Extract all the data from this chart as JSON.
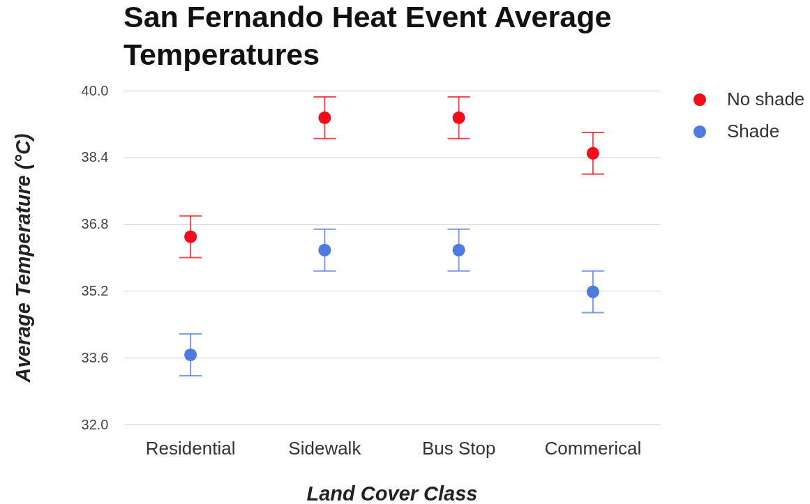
{
  "chart_data": {
    "type": "scatter",
    "title": "San Fernando Heat Event Average Temperatures",
    "xlabel": "Land Cover Class",
    "ylabel": "Average Temperature (°C)",
    "categories": [
      "Residential",
      "Sidewalk",
      "Bus Stop",
      "Commerical"
    ],
    "series": [
      {
        "name": "No shade",
        "color": "#f20d1c",
        "values": [
          36.5,
          39.35,
          39.35,
          38.5
        ],
        "errors": [
          0.5,
          0.5,
          0.5,
          0.5
        ]
      },
      {
        "name": "Shade",
        "color": "#4d7be0",
        "values": [
          33.67,
          36.18,
          36.18,
          35.18
        ],
        "errors": [
          0.5,
          0.5,
          0.5,
          0.5
        ]
      }
    ],
    "ylim": [
      32,
      40
    ],
    "yticks": [
      {
        "value": 32,
        "label": "32.0"
      },
      33.6,
      35.2,
      36.8,
      38.4,
      {
        "value": 40,
        "label": "40.0"
      }
    ],
    "grid": "y",
    "legend": "top right",
    "marker": "circle"
  }
}
